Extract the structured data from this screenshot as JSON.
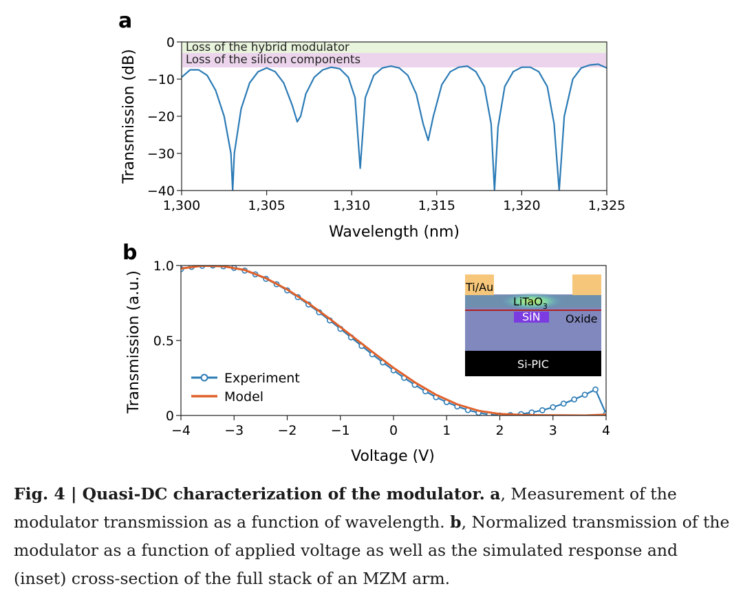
{
  "chart_data": [
    {
      "panel": "a",
      "type": "line",
      "xlabel": "Wavelength (nm)",
      "ylabel": "Transmission (dB)",
      "xlim": [
        1300,
        1325
      ],
      "ylim": [
        -40,
        0
      ],
      "xticks": [
        1300,
        1305,
        1310,
        1315,
        1320,
        1325
      ],
      "xtick_labels": [
        "1,300",
        "1,305",
        "1,310",
        "1,315",
        "1,320",
        "1,325"
      ],
      "yticks": [
        0,
        -10,
        -20,
        -30,
        -40
      ],
      "ytick_labels": [
        "0",
        "−10",
        "−20",
        "−30",
        "−40"
      ],
      "bands": [
        {
          "label": "Loss of the hybrid modulator",
          "range": [
            -3,
            0
          ],
          "color": "#e9f4dc"
        },
        {
          "label": "Loss of the silicon components",
          "range": [
            -7,
            -3
          ],
          "color": "#ecd5ec"
        }
      ],
      "series": [
        {
          "color": "#2a7ab5",
          "x": [
            1300.0,
            1300.5,
            1301.0,
            1301.5,
            1302.0,
            1302.5,
            1302.9,
            1303.0,
            1303.1,
            1303.5,
            1304.0,
            1304.5,
            1305.0,
            1305.5,
            1306.0,
            1306.5,
            1306.8,
            1307.0,
            1307.3,
            1307.8,
            1308.3,
            1308.8,
            1309.3,
            1309.8,
            1310.2,
            1310.5,
            1310.8,
            1311.3,
            1311.8,
            1312.3,
            1312.8,
            1313.3,
            1313.8,
            1314.2,
            1314.5,
            1314.8,
            1315.3,
            1315.8,
            1316.3,
            1316.8,
            1317.3,
            1317.8,
            1318.2,
            1318.4,
            1318.6,
            1319.0,
            1319.5,
            1320.0,
            1320.5,
            1321.0,
            1321.5,
            1321.9,
            1322.2,
            1322.5,
            1323.0,
            1323.5,
            1324.0,
            1324.5,
            1325.0
          ],
          "y": [
            -9.5,
            -7.5,
            -7.5,
            -9.0,
            -13.0,
            -20.0,
            -30.0,
            -40.0,
            -30.0,
            -18.0,
            -11.0,
            -8.0,
            -7.0,
            -8.0,
            -11.0,
            -17.0,
            -21.5,
            -20.0,
            -14.0,
            -9.5,
            -7.5,
            -6.8,
            -7.2,
            -9.5,
            -15.0,
            -34.0,
            -15.0,
            -9.0,
            -7.0,
            -6.5,
            -7.0,
            -9.0,
            -14.0,
            -22.0,
            -26.5,
            -20.0,
            -11.5,
            -8.0,
            -6.8,
            -6.5,
            -8.0,
            -12.0,
            -22.0,
            -40.0,
            -23.0,
            -12.0,
            -8.0,
            -6.8,
            -6.8,
            -8.0,
            -12.0,
            -22.0,
            -40.0,
            -20.0,
            -10.0,
            -7.0,
            -6.2,
            -6.0,
            -7.0
          ]
        }
      ]
    },
    {
      "panel": "b",
      "type": "line",
      "xlabel": "Voltage (V)",
      "ylabel": "Transmission (a.u.)",
      "xlim": [
        -4,
        4
      ],
      "ylim": [
        0,
        1
      ],
      "xticks": [
        -4,
        -3,
        -2,
        -1,
        0,
        1,
        2,
        3,
        4
      ],
      "xtick_labels": [
        "−4",
        "−3",
        "−2",
        "−1",
        "0",
        "1",
        "2",
        "3",
        "4"
      ],
      "yticks": [
        0,
        0.5,
        1.0
      ],
      "ytick_labels": [
        "0",
        "0.5",
        "1.0"
      ],
      "legend_position": "lower-left",
      "series": [
        {
          "name": "Experiment",
          "color": "#2a7ab5",
          "marker": "open-circle",
          "x": [
            -4.0,
            -3.8,
            -3.6,
            -3.4,
            -3.2,
            -3.0,
            -2.8,
            -2.6,
            -2.4,
            -2.2,
            -2.0,
            -1.8,
            -1.6,
            -1.4,
            -1.2,
            -1.0,
            -0.8,
            -0.6,
            -0.4,
            -0.2,
            0.0,
            0.2,
            0.4,
            0.6,
            0.8,
            1.0,
            1.2,
            1.4,
            1.6,
            1.8,
            2.0,
            2.2,
            2.4,
            2.6,
            2.8,
            3.0,
            3.2,
            3.4,
            3.6,
            3.8,
            4.0
          ],
          "y": [
            0.976,
            0.991,
            0.998,
            1.0,
            0.995,
            0.984,
            0.966,
            0.941,
            0.911,
            0.875,
            0.834,
            0.789,
            0.74,
            0.688,
            0.634,
            0.578,
            0.521,
            0.464,
            0.408,
            0.354,
            0.301,
            0.251,
            0.204,
            0.161,
            0.122,
            0.089,
            0.06,
            0.036,
            0.018,
            0.006,
            0.0,
            0.003,
            0.009,
            0.02,
            0.035,
            0.055,
            0.079,
            0.107,
            0.138,
            0.173,
            0.01
          ]
        },
        {
          "name": "Model",
          "color": "#e0602a",
          "x": [
            -4.0,
            -3.6,
            -3.2,
            -2.8,
            -2.4,
            -2.0,
            -1.6,
            -1.2,
            -0.8,
            -0.4,
            0.0,
            0.4,
            0.8,
            1.2,
            1.6,
            2.0,
            2.4,
            2.8,
            3.2,
            3.6,
            4.0
          ],
          "y": [
            0.98,
            0.998,
            0.995,
            0.97,
            0.915,
            0.84,
            0.748,
            0.645,
            0.535,
            0.425,
            0.318,
            0.221,
            0.138,
            0.074,
            0.031,
            0.01,
            0.004,
            0.002,
            0.001,
            0.0,
            0.006
          ]
        }
      ],
      "inset_labels": {
        "metal": "Ti/Au",
        "film": "LiTaO",
        "film_subscript": "3",
        "waveguide": "SiN",
        "cladding": "Oxide",
        "substrate": "Si-PIC"
      }
    }
  ],
  "caption": {
    "lead": "Fig. 4 | Quasi-DC characterization of the modulator.",
    "a_label": "a",
    "a_text": ", Measurement of the modulator transmission as a function of wavelength.",
    "b_label": "b",
    "b_text": ", Normalized transmission of the modulator as a function of applied voltage as well as the simulated response and (inset) cross-section of the full stack of an MZM arm."
  }
}
